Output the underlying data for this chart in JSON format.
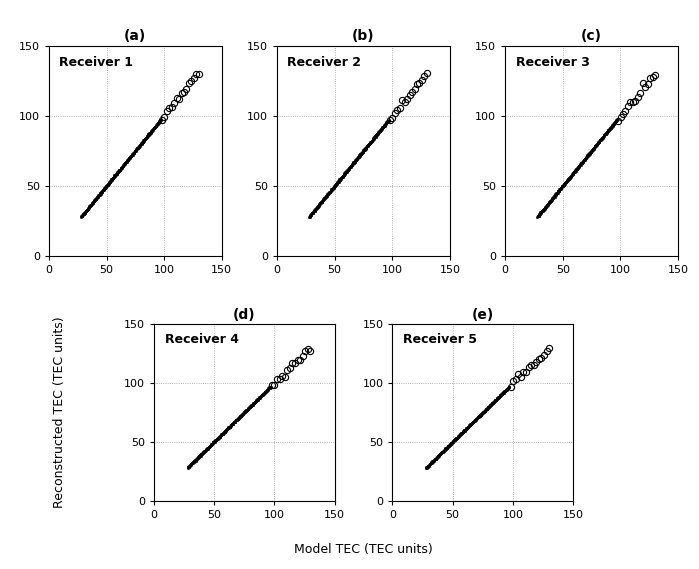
{
  "receivers": [
    "Receiver 1",
    "Receiver 2",
    "Receiver 3",
    "Receiver 4",
    "Receiver 5"
  ],
  "panel_labels": [
    "(a)",
    "(b)",
    "(c)",
    "(d)",
    "(e)"
  ],
  "xlim": [
    0,
    150
  ],
  "ylim": [
    0,
    150
  ],
  "xticks": [
    0,
    50,
    100,
    150
  ],
  "yticks": [
    0,
    50,
    100,
    150
  ],
  "xlabel": "Model TEC (TEC units)",
  "ylabel": "Reconstructed TEC (TEC units)",
  "scatter_start": 28,
  "scatter_end_dense": 97,
  "scatter_end_open": 130,
  "n_dense": 300,
  "n_open": 16,
  "marker_size_dense": 1.8,
  "marker_size_open": 4.5,
  "grid_color": "#999999",
  "grid_linestyle": ":",
  "background_color": "#ffffff",
  "label_fontsize": 9,
  "tick_fontsize": 8,
  "receiver_label_fontsize": 9,
  "panel_label_fontsize": 10
}
